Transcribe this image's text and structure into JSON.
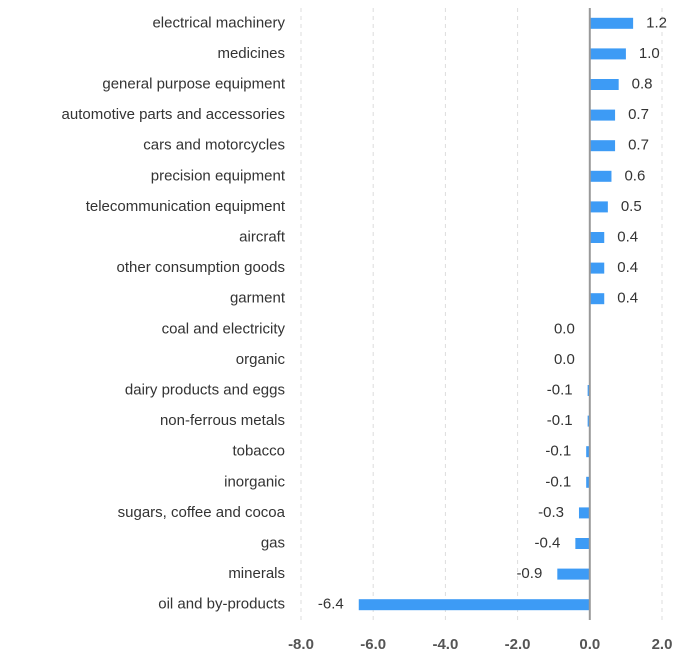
{
  "chart_data": {
    "type": "bar",
    "orientation": "horizontal",
    "color": "#3d9bf5",
    "categories": [
      "electrical machinery",
      "medicines",
      "general purpose equipment",
      "automotive parts and accessories",
      "cars and motorcycles",
      "precision equipment",
      "telecommunication equipment",
      "aircraft",
      "other consumption goods",
      "garment",
      "coal and electricity",
      "organic",
      "dairy products and eggs",
      "non-ferrous metals",
      "tobacco",
      "inorganic",
      "sugars, coffee and cocoa",
      "gas",
      "minerals",
      "oil and by-products"
    ],
    "values": [
      1.2,
      1.0,
      0.8,
      0.7,
      0.7,
      0.6,
      0.5,
      0.4,
      0.4,
      0.4,
      0,
      0,
      -0.06,
      -0.06,
      -0.1,
      -0.1,
      -0.3,
      -0.4,
      -0.9,
      -6.4
    ],
    "value_labels": [
      "1.2",
      "1.0",
      "0.8",
      "0.7",
      "0.7",
      "0.6",
      "0.5",
      "0.4",
      "0.4",
      "0.4",
      "0.0",
      "0.0",
      "-0.1",
      "-0.1",
      "-0.1",
      "-0.1",
      "-0.3",
      "-0.4",
      "-0.9",
      "-6.4"
    ],
    "xlim": [
      -8,
      2
    ],
    "xticks": [
      {
        "value": -8,
        "label": "-8.0"
      },
      {
        "value": -6,
        "label": "-6.0"
      },
      {
        "value": -4,
        "label": "-4.0"
      },
      {
        "value": -2,
        "label": "-2.0"
      },
      {
        "value": 0,
        "label": "0.0"
      },
      {
        "value": 2,
        "label": "2.0"
      }
    ],
    "grid": true
  }
}
